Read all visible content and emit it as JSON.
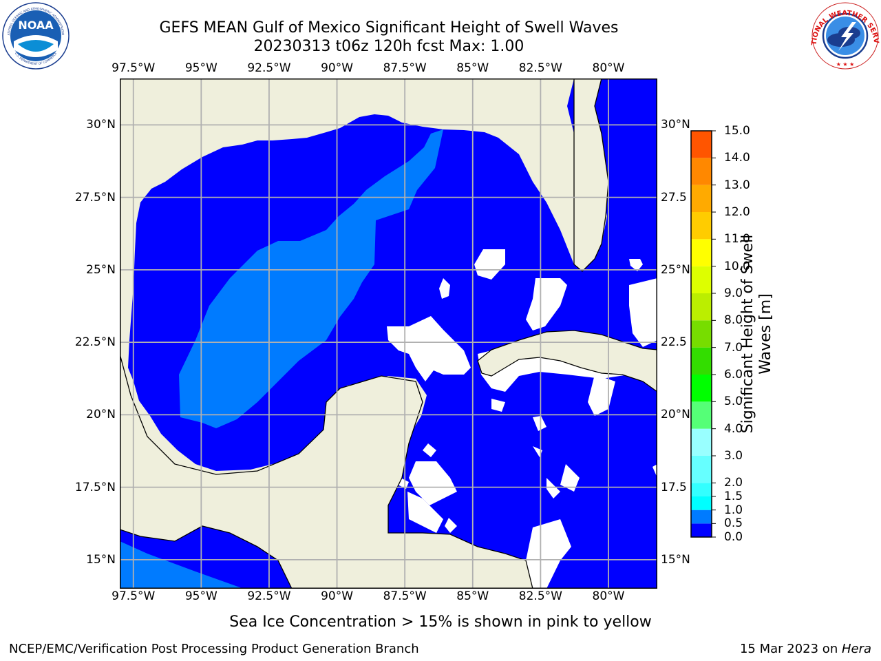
{
  "header": {
    "title_line1": "GEFS MEAN Gulf of Mexico Significant Height of Swell Waves",
    "title_line2": "20230313 t06z 120h fcst   Max: 1.00"
  },
  "logos": {
    "left_text": "NOAA",
    "left_ring_text": "NATIONAL OCEANIC AND ATMOSPHERIC ADMINISTRATION",
    "left_ring_text_bottom": "U.S. DEPARTMENT OF COMMERCE",
    "right_ring_text": "NATIONAL WEATHER SERVICE"
  },
  "map": {
    "lon_ticks": [
      "97.5°W",
      "95°W",
      "92.5°W",
      "90°W",
      "87.5°W",
      "85°W",
      "82.5°W",
      "80°W"
    ],
    "lon_values": [
      -97.5,
      -95,
      -92.5,
      -90,
      -87.5,
      -85,
      -82.5,
      -80
    ],
    "lat_ticks": [
      "30°N",
      "27.5°N",
      "25°N",
      "22.5°N",
      "20°N",
      "17.5°N",
      "15°N"
    ],
    "lat_values": [
      30,
      27.5,
      25,
      22.5,
      20,
      17.5,
      15
    ],
    "lat_ticks_right": [
      "30°N",
      "27.5",
      "25°N",
      "22.5",
      "20°N",
      "17.5",
      "15°N"
    ],
    "extent": {
      "lon_min": -98,
      "lon_max": -78.2,
      "lat_min": 14,
      "lat_max": 31.6
    },
    "colors": {
      "land": "#efefdc",
      "coast": "#000000",
      "grid": "#b0b0b0",
      "swell_0_0p5": "#0000ff",
      "swell_0p5_1": "#007bff",
      "no_data": "#ffffff"
    }
  },
  "colorbar": {
    "label_line1": "Significant Height of Swell",
    "label_line2": "Waves [m]",
    "levels": [
      "0.0",
      "0.5",
      "1.0",
      "1.5",
      "2.0",
      "3.0",
      "4.0",
      "5.0",
      "6.0",
      "7.0",
      "8.0",
      "9.0",
      "10.0",
      "11.0",
      "12.0",
      "13.0",
      "14.0",
      "15.0"
    ],
    "colors": [
      "#0000ff",
      "#007bff",
      "#00ffff",
      "#33ffff",
      "#66ffff",
      "#99ffff",
      "#55ff77",
      "#00ff00",
      "#33dd00",
      "#77dd00",
      "#bbee00",
      "#ddff00",
      "#ffff00",
      "#ffcc00",
      "#ffaa00",
      "#ff8800",
      "#ff5500",
      "#ff2200",
      "#ff0000"
    ]
  },
  "note": "Sea Ice Concentration > 15% is shown in pink to yellow",
  "footer": {
    "left": "NCEP/EMC/Verification Post Processing Product Generation Branch",
    "right_prefix": "15 Mar 2023 on ",
    "right_machine": "Hera"
  }
}
